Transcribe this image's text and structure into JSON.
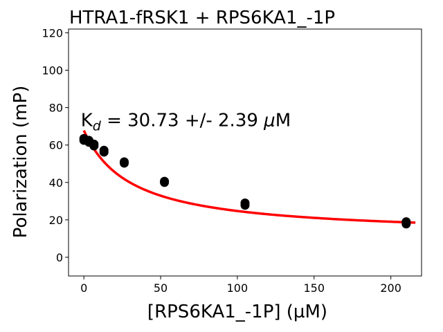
{
  "chart_data": {
    "type": "scatter",
    "title": "HTRA1-fRSK1 + RPS6KA1_-1P",
    "xlabel": "[RPS6KA1_-1P] (µM)",
    "ylabel": "Polarization (mP)",
    "xlim": [
      -10,
      220
    ],
    "ylim": [
      -10,
      122
    ],
    "xticks": [
      0,
      50,
      100,
      150,
      200
    ],
    "yticks": [
      0,
      20,
      40,
      60,
      80,
      100,
      120
    ],
    "grid": false,
    "annotation": {
      "base": "K",
      "subscript": "d",
      "rest": " = 30.73 +/- 2.39 ",
      "mu": "μ",
      "unit": "M",
      "x": -2,
      "y": 70
    },
    "series": [
      {
        "marker": "circle",
        "color": "#000000",
        "points": [
          [
            0,
            63.5
          ],
          [
            0,
            62.5
          ],
          [
            3.3,
            62.5
          ],
          [
            3.3,
            61.5
          ],
          [
            6.6,
            60.5
          ],
          [
            6.6,
            59.5
          ],
          [
            13.1,
            57.2
          ],
          [
            13.1,
            56.2
          ],
          [
            26.3,
            51.0
          ],
          [
            26.3,
            50.3
          ],
          [
            52.5,
            40.6
          ],
          [
            52.5,
            40.0
          ],
          [
            105,
            29.0
          ],
          [
            105,
            27.8
          ],
          [
            210,
            19.0
          ],
          [
            210,
            17.8
          ]
        ]
      },
      {
        "type": "line",
        "color": "#ff0000",
        "fit": {
          "kd": 30.73,
          "top": 67.8,
          "bottom": 11.5,
          "x_start": 0,
          "x_end": 216
        }
      }
    ]
  }
}
